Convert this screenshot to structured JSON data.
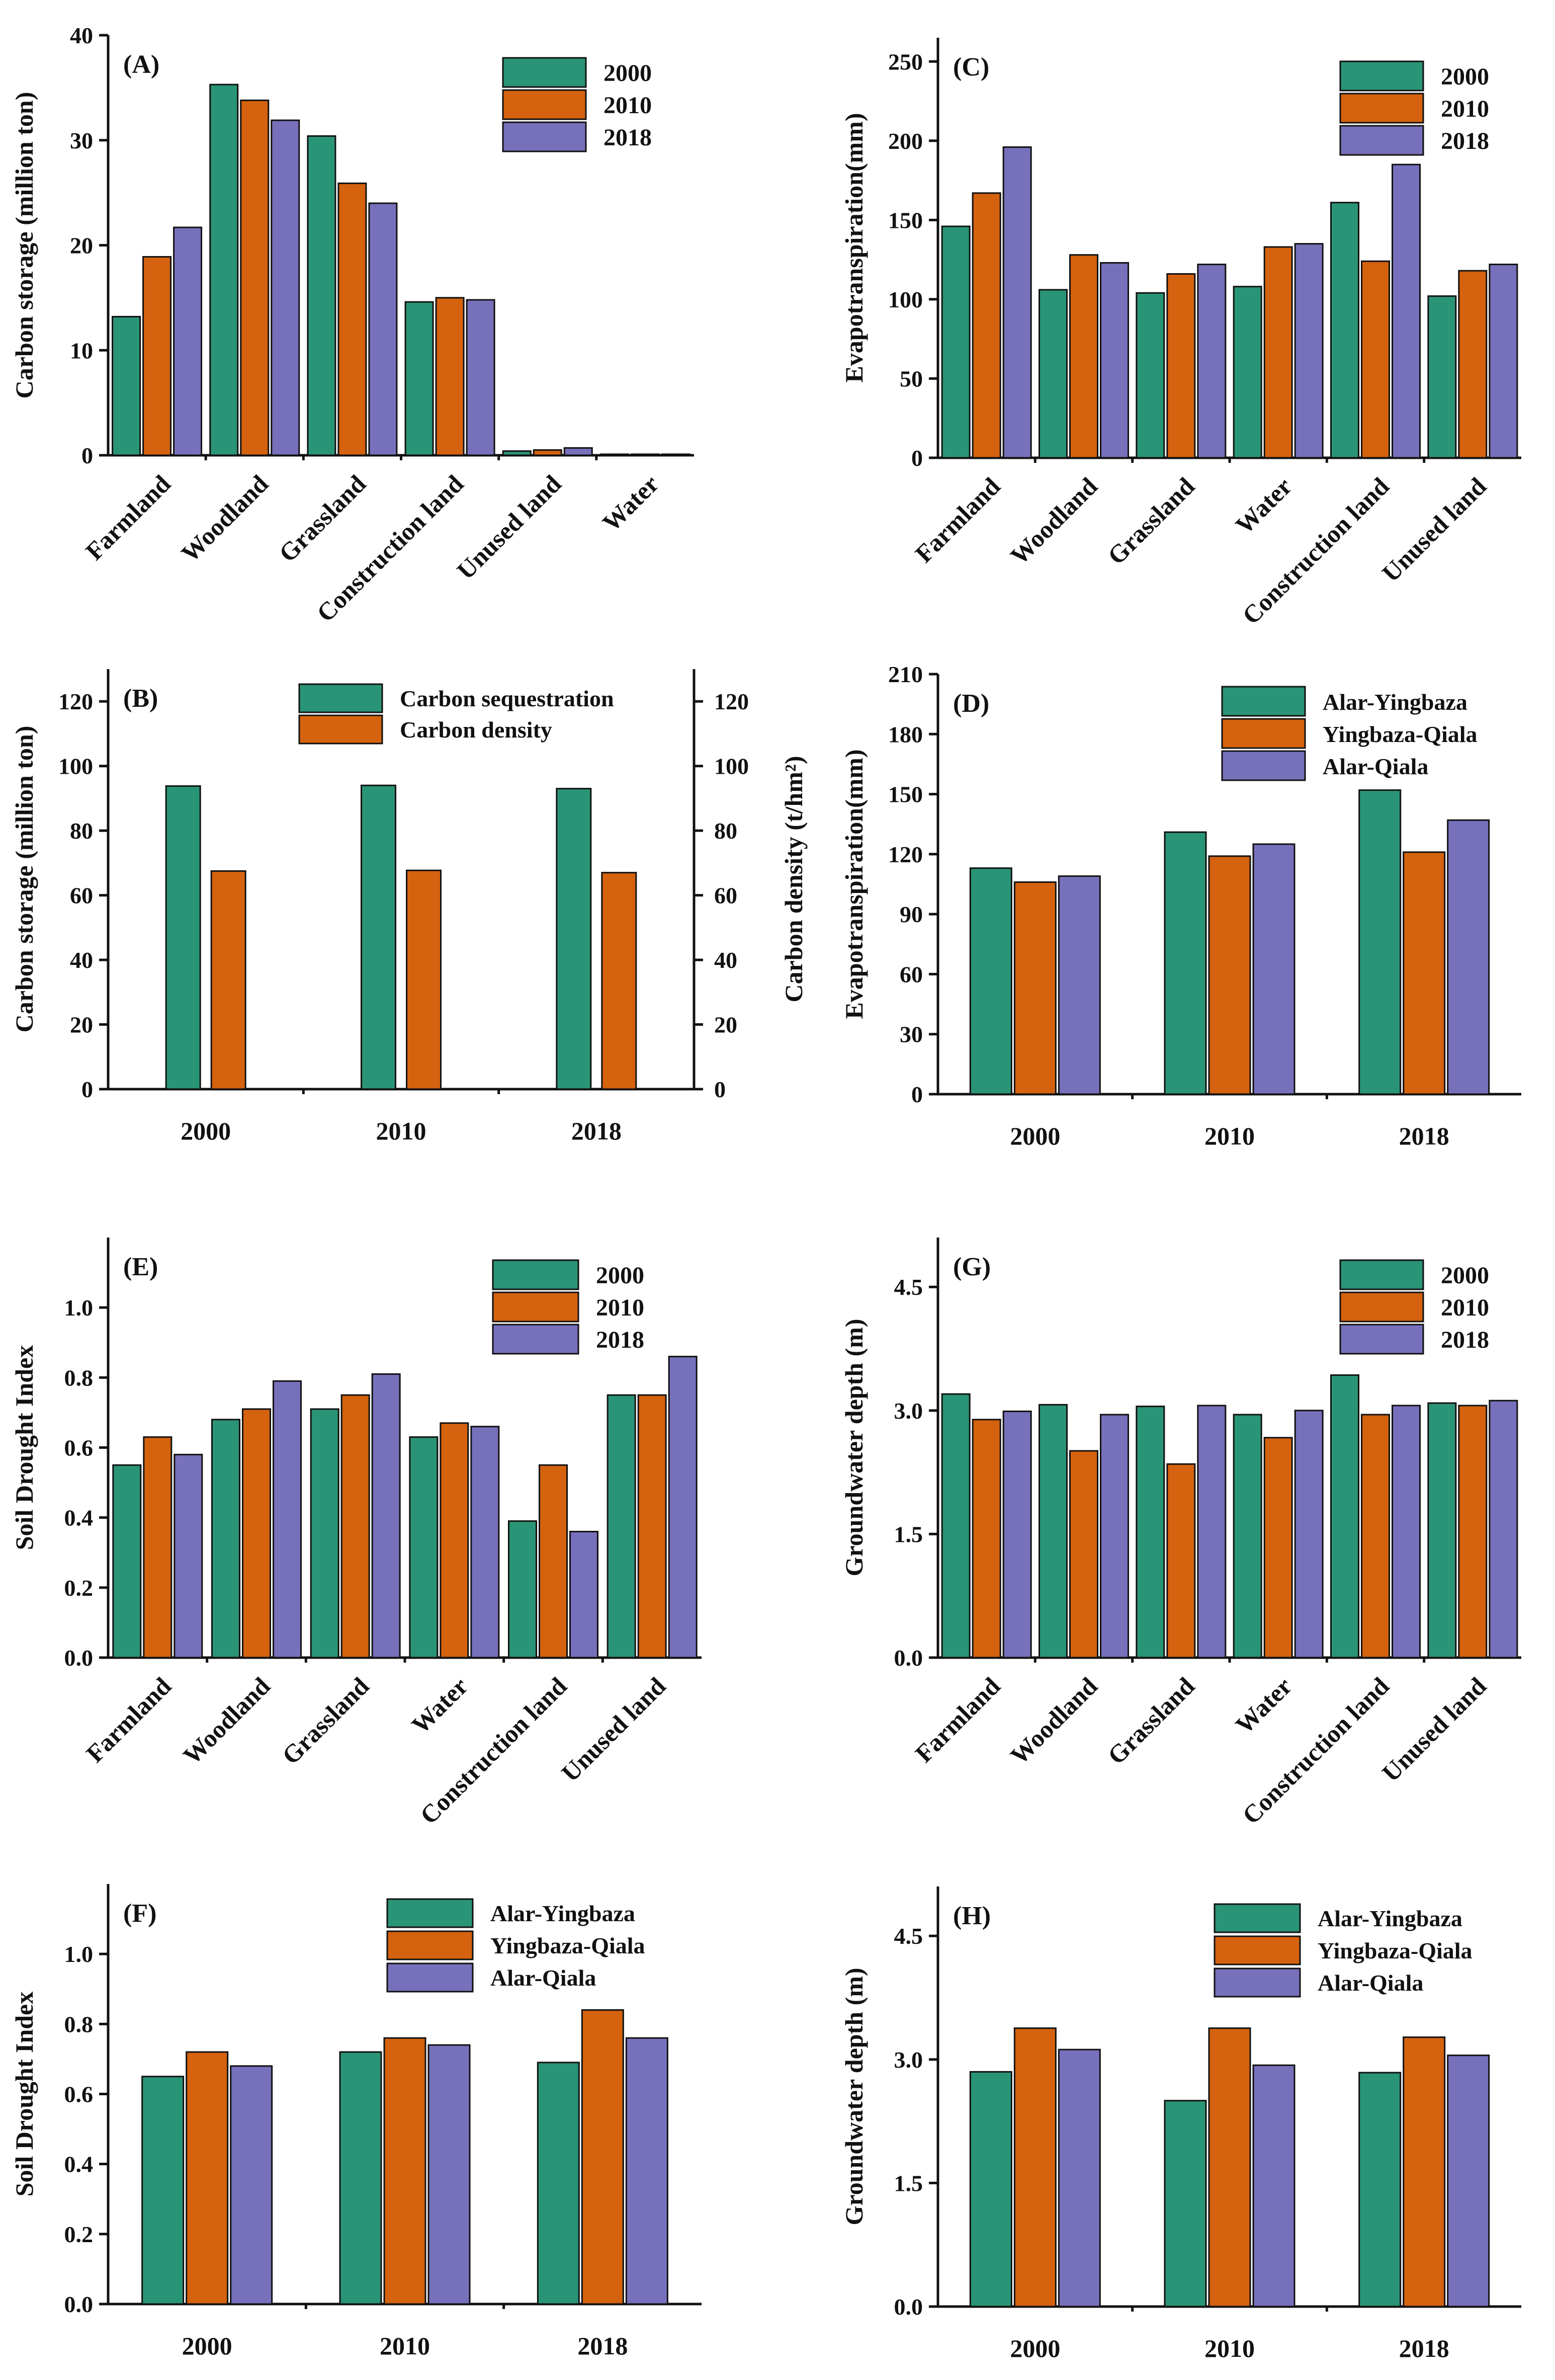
{
  "chart_data": [
    {
      "id": "A",
      "type": "bar",
      "panel_label": "(A)",
      "ylabel": "Carbon storage (million ton)",
      "ylim": [
        0,
        40
      ],
      "yticks": [
        0,
        10,
        20,
        30,
        40
      ],
      "categories": [
        "Farmland",
        "Woodland",
        "Grassland",
        "Construction land",
        "Unused land",
        "Water"
      ],
      "series": [
        {
          "name": "2000",
          "color": "#2a9476",
          "values": [
            13.2,
            35.3,
            30.4,
            14.6,
            0.4,
            0.1
          ]
        },
        {
          "name": "2010",
          "color": "#d4620f",
          "values": [
            18.9,
            33.8,
            25.9,
            15.0,
            0.5,
            0.1
          ]
        },
        {
          "name": "2018",
          "color": "#7770bb",
          "values": [
            21.7,
            31.9,
            24.0,
            14.8,
            0.7,
            0.1
          ]
        }
      ],
      "legend_position": "top-right"
    },
    {
      "id": "B",
      "type": "bar",
      "panel_label": "(B)",
      "ylabel": "Carbon storage (million ton)",
      "ylabel_right": "Carbon density (t/hm²)",
      "ylim": [
        0,
        130
      ],
      "yticks": [
        0,
        20,
        40,
        60,
        80,
        100,
        120
      ],
      "ylim_right": [
        0,
        130
      ],
      "yticks_right": [
        0,
        20,
        40,
        60,
        80,
        100,
        120
      ],
      "categories": [
        "2000",
        "2010",
        "2018"
      ],
      "series": [
        {
          "name": "Carbon sequestration",
          "color": "#2a9476",
          "values": [
            93.8,
            94.0,
            93.0
          ],
          "axis": "left"
        },
        {
          "name": "Carbon density",
          "color": "#d4620f",
          "values": [
            67.5,
            67.7,
            67.0
          ],
          "axis": "right"
        }
      ],
      "legend_position": "top-right"
    },
    {
      "id": "C",
      "type": "bar",
      "panel_label": "(C)",
      "ylabel": "Evapotranspiration(mm)",
      "ylim": [
        0,
        265
      ],
      "yticks": [
        0,
        50,
        100,
        150,
        200,
        250
      ],
      "categories": [
        "Farmland",
        "Woodland",
        "Grassland",
        "Water",
        "Construction land",
        "Unused land"
      ],
      "series": [
        {
          "name": "2000",
          "color": "#2a9476",
          "values": [
            146,
            106,
            104,
            108,
            161,
            102
          ]
        },
        {
          "name": "2010",
          "color": "#d4620f",
          "values": [
            167,
            128,
            116,
            133,
            124,
            118
          ]
        },
        {
          "name": "2018",
          "color": "#7770bb",
          "values": [
            196,
            123,
            122,
            135,
            185,
            122
          ]
        }
      ],
      "legend_position": "top-right"
    },
    {
      "id": "D",
      "type": "bar",
      "panel_label": "(D)",
      "ylabel": "Evapotranspiration(mm)",
      "ylim": [
        0,
        210
      ],
      "yticks": [
        0,
        30,
        60,
        90,
        120,
        150,
        180,
        210
      ],
      "categories": [
        "2000",
        "2010",
        "2018"
      ],
      "series": [
        {
          "name": "Alar-Yingbaza",
          "color": "#2a9476",
          "values": [
            113,
            131,
            152
          ]
        },
        {
          "name": "Yingbaza-Qiala",
          "color": "#d4620f",
          "values": [
            106,
            119,
            121
          ]
        },
        {
          "name": "Alar-Qiala",
          "color": "#7770bb",
          "values": [
            109,
            125,
            137
          ]
        }
      ],
      "legend_position": "top-right"
    },
    {
      "id": "E",
      "type": "bar",
      "panel_label": "(E)",
      "ylabel": "Soil Drought Index",
      "ylim": [
        0,
        1.2
      ],
      "yticks": [
        0.0,
        0.2,
        0.4,
        0.6,
        0.8,
        1.0
      ],
      "ytick_labels": [
        "0.0",
        "0.2",
        "0.4",
        "0.6",
        "0.8",
        "1.0"
      ],
      "categories": [
        "Farmland",
        "Woodland",
        "Grassland",
        "Water",
        "Construction land",
        "Unused land"
      ],
      "series": [
        {
          "name": "2000",
          "color": "#2a9476",
          "values": [
            0.55,
            0.68,
            0.71,
            0.63,
            0.39,
            0.75
          ]
        },
        {
          "name": "2010",
          "color": "#d4620f",
          "values": [
            0.63,
            0.71,
            0.75,
            0.67,
            0.55,
            0.75
          ]
        },
        {
          "name": "2018",
          "color": "#7770bb",
          "values": [
            0.58,
            0.79,
            0.81,
            0.66,
            0.36,
            0.86
          ]
        }
      ],
      "legend_position": "top-right"
    },
    {
      "id": "G",
      "type": "bar",
      "panel_label": "(G)",
      "ylabel": "Groundwater depth (m)",
      "ylim": [
        0,
        5.1
      ],
      "yticks": [
        0.0,
        1.5,
        3.0,
        4.5
      ],
      "ytick_labels": [
        "0.0",
        "1.5",
        "3.0",
        "4.5"
      ],
      "categories": [
        "Farmland",
        "Woodland",
        "Grassland",
        "Water",
        "Construction land",
        "Unused land"
      ],
      "series": [
        {
          "name": "2000",
          "color": "#2a9476",
          "values": [
            3.2,
            3.07,
            3.05,
            2.95,
            3.43,
            3.09
          ]
        },
        {
          "name": "2010",
          "color": "#d4620f",
          "values": [
            2.89,
            2.51,
            2.35,
            2.67,
            2.95,
            3.06
          ]
        },
        {
          "name": "2018",
          "color": "#7770bb",
          "values": [
            2.99,
            2.95,
            3.06,
            3.0,
            3.06,
            3.12
          ]
        }
      ],
      "legend_position": "top-right"
    },
    {
      "id": "F",
      "type": "bar",
      "panel_label": "(F)",
      "ylabel": "Soil Drought Index",
      "ylim": [
        0,
        1.2
      ],
      "yticks": [
        0.0,
        0.2,
        0.4,
        0.6,
        0.8,
        1.0
      ],
      "ytick_labels": [
        "0.0",
        "0.2",
        "0.4",
        "0.6",
        "0.8",
        "1.0"
      ],
      "categories": [
        "2000",
        "2010",
        "2018"
      ],
      "series": [
        {
          "name": "Alar-Yingbaza",
          "color": "#2a9476",
          "values": [
            0.65,
            0.72,
            0.69
          ]
        },
        {
          "name": "Yingbaza-Qiala",
          "color": "#d4620f",
          "values": [
            0.72,
            0.76,
            0.84
          ]
        },
        {
          "name": "Alar-Qiala",
          "color": "#7770bb",
          "values": [
            0.68,
            0.74,
            0.76
          ]
        }
      ],
      "legend_position": "top-right"
    },
    {
      "id": "H",
      "type": "bar",
      "panel_label": "(H)",
      "ylabel": "Groundwater depth (m)",
      "ylim": [
        0,
        5.1
      ],
      "yticks": [
        0.0,
        1.5,
        3.0,
        4.5
      ],
      "ytick_labels": [
        "0.0",
        "1.5",
        "3.0",
        "4.5"
      ],
      "categories": [
        "2000",
        "2010",
        "2018"
      ],
      "series": [
        {
          "name": "Alar-Yingbaza",
          "color": "#2a9476",
          "values": [
            2.85,
            2.5,
            2.84
          ]
        },
        {
          "name": "Yingbaza-Qiala",
          "color": "#d4620f",
          "values": [
            3.38,
            3.38,
            3.27
          ]
        },
        {
          "name": "Alar-Qiala",
          "color": "#7770bb",
          "values": [
            3.12,
            2.93,
            3.05
          ]
        }
      ],
      "legend_position": "top-right"
    }
  ]
}
